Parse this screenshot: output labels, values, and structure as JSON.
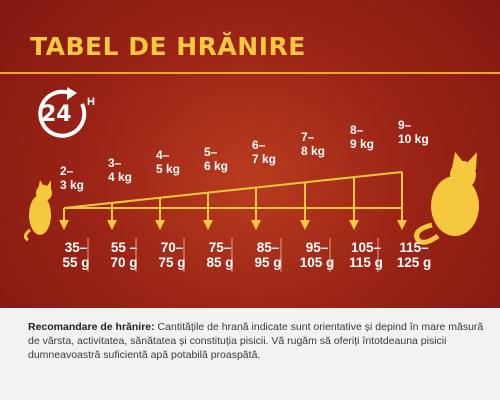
{
  "title": "TABEL DE HRĂNIRE",
  "clock": {
    "number": "24",
    "unit": "H",
    "icon": "clock-24h-icon"
  },
  "weights": [
    {
      "top": "2–",
      "bottom": "3 kg"
    },
    {
      "top": "3–",
      "bottom": "4 kg"
    },
    {
      "top": "4–",
      "bottom": "5 kg"
    },
    {
      "top": "5–",
      "bottom": "6 kg"
    },
    {
      "top": "6–",
      "bottom": "7 kg"
    },
    {
      "top": "7–",
      "bottom": "8 kg"
    },
    {
      "top": "8–",
      "bottom": "9 kg"
    },
    {
      "top": "9–",
      "bottom": "10 kg"
    }
  ],
  "grams": [
    {
      "top": "35–",
      "bottom": "55 g"
    },
    {
      "top": "55 –",
      "bottom": "70 g"
    },
    {
      "top": "70–",
      "bottom": "75 g"
    },
    {
      "top": "75–",
      "bottom": "85 g"
    },
    {
      "top": "85–",
      "bottom": "95 g"
    },
    {
      "top": "95–",
      "bottom": "105 g"
    },
    {
      "top": "105–",
      "bottom": "115 g"
    },
    {
      "top": "115–",
      "bottom": "125 g"
    }
  ],
  "footer": {
    "label": "Recomandare de hrănire:",
    "text": " Cantitățile de hrană indicate sunt orientative și depind în mare măsură de vârsta, activitatea, sănătatea și constituția pisicii. Vă rugăm să oferiți întotdeauna pisicii dumneavoastră suficientă apă potabilă proaspătă."
  },
  "colors": {
    "background": "#9b2416",
    "accent": "#f6c83e",
    "line": "#e9a73a",
    "footer_bg": "#f2f2f2"
  }
}
